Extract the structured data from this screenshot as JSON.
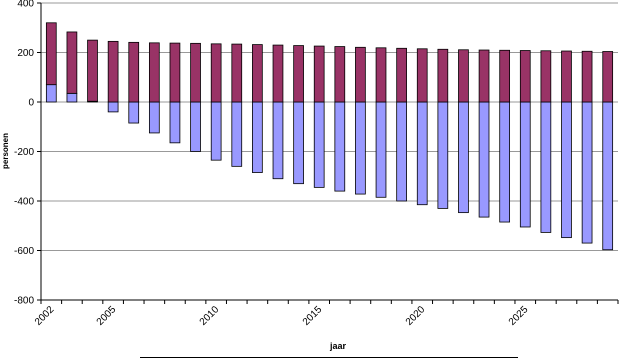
{
  "chart_data": {
    "type": "stacked-bar",
    "x_label": "jaar",
    "y_label": "personen",
    "categories": [
      "2002",
      null,
      null,
      "2005",
      null,
      null,
      null,
      null,
      "2010",
      null,
      null,
      null,
      null,
      "2015",
      null,
      null,
      null,
      null,
      "2020",
      null,
      null,
      null,
      null,
      "2025",
      null,
      null,
      null,
      null
    ],
    "series": [
      {
        "color": "#9999ff",
        "values": [
          70,
          35,
          3,
          -40,
          -85,
          -125,
          -165,
          -200,
          -235,
          -260,
          -285,
          -310,
          -330,
          -345,
          -360,
          -372,
          -385,
          -400,
          -415,
          -430,
          -447,
          -465,
          -485,
          -505,
          -527,
          -548,
          -570,
          -597
        ]
      },
      {
        "color": "#993366",
        "values": [
          250,
          248,
          247,
          245,
          241,
          239,
          238,
          237,
          235,
          234,
          232,
          230,
          228,
          226,
          224,
          221,
          219,
          217,
          215,
          213,
          211,
          210,
          209,
          208,
          207,
          206,
          205,
          204
        ]
      }
    ],
    "ylim": [
      -800,
      400
    ],
    "yticks": [
      -800,
      -600,
      -400,
      -200,
      0,
      200,
      400
    ],
    "grid": true
  }
}
